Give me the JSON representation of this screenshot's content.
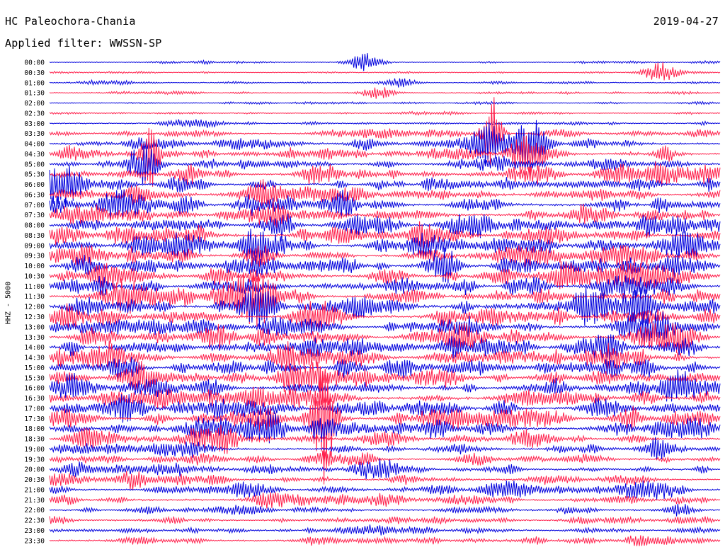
{
  "header": {
    "station": "HC Paleochora-Chania",
    "date": "2019-04-27",
    "filter": "Applied filter: WWSSN-SP"
  },
  "chart_data": {
    "type": "line",
    "ylabel": "HHZ - 5000",
    "colors": [
      "#0000dd",
      "#ff1f4b"
    ],
    "rows": [
      "00:00",
      "00:30",
      "01:00",
      "01:30",
      "02:00",
      "02:30",
      "03:00",
      "03:30",
      "04:00",
      "04:30",
      "05:00",
      "05:30",
      "06:00",
      "06:30",
      "07:00",
      "07:30",
      "08:00",
      "08:30",
      "09:00",
      "09:30",
      "10:00",
      "10:30",
      "11:00",
      "11:30",
      "12:00",
      "12:30",
      "13:00",
      "13:30",
      "14:00",
      "14:30",
      "15:00",
      "15:30",
      "16:00",
      "16:30",
      "17:00",
      "17:30",
      "18:00",
      "18:30",
      "19:00",
      "19:30",
      "20:00",
      "20:30",
      "21:00",
      "21:30",
      "22:00",
      "22:30",
      "23:00",
      "23:30"
    ],
    "noise_level": [
      1,
      1,
      1,
      1,
      1,
      1,
      2,
      3,
      4,
      4,
      4,
      5,
      5,
      5,
      6,
      6,
      6,
      6,
      6,
      6,
      6,
      6,
      6,
      6,
      6,
      6,
      6,
      6,
      6,
      6,
      6,
      6,
      6,
      6,
      6,
      6,
      6,
      5,
      4,
      4,
      4,
      4,
      4,
      4,
      3,
      3,
      3,
      3
    ],
    "events": [
      {
        "row": "00:00",
        "pos": 0.47,
        "amp": 12
      },
      {
        "row": "00:30",
        "pos": 0.91,
        "amp": 12
      },
      {
        "row": "01:00",
        "pos": 0.52,
        "amp": 8
      },
      {
        "row": "01:30",
        "pos": 0.49,
        "amp": 9
      },
      {
        "row": "03:30",
        "pos": 0.66,
        "amp": 55
      },
      {
        "row": "04:00",
        "pos": 0.65,
        "amp": 24
      },
      {
        "row": "04:00",
        "pos": 0.72,
        "amp": 28
      },
      {
        "row": "04:30",
        "pos": 0.71,
        "amp": 34
      },
      {
        "row": "04:30",
        "pos": 0.15,
        "amp": 60
      },
      {
        "row": "05:00",
        "pos": 0.14,
        "amp": 25
      },
      {
        "row": "05:30",
        "pos": 0.73,
        "amp": 12
      },
      {
        "row": "06:00",
        "pos": 0.02,
        "amp": 22
      },
      {
        "row": "09:00",
        "pos": 0.31,
        "amp": 22
      },
      {
        "row": "09:30",
        "pos": 0.31,
        "amp": 15
      },
      {
        "row": "10:30",
        "pos": 0.67,
        "amp": 14
      },
      {
        "row": "11:30",
        "pos": 0.31,
        "amp": 30
      },
      {
        "row": "12:00",
        "pos": 0.31,
        "amp": 22
      },
      {
        "row": "12:00",
        "pos": 0.81,
        "amp": 16
      },
      {
        "row": "12:00",
        "pos": 0.88,
        "amp": 18
      },
      {
        "row": "14:30",
        "pos": 0.08,
        "amp": 15
      },
      {
        "row": "17:30",
        "pos": 0.41,
        "amp": 25
      },
      {
        "row": "17:30",
        "pos": 0.41,
        "amp": 80
      },
      {
        "row": "18:00",
        "pos": 0.41,
        "amp": 12
      },
      {
        "row": "20:00",
        "pos": 0.04,
        "amp": 10
      },
      {
        "row": "21:00",
        "pos": 0.92,
        "amp": 10
      }
    ]
  }
}
